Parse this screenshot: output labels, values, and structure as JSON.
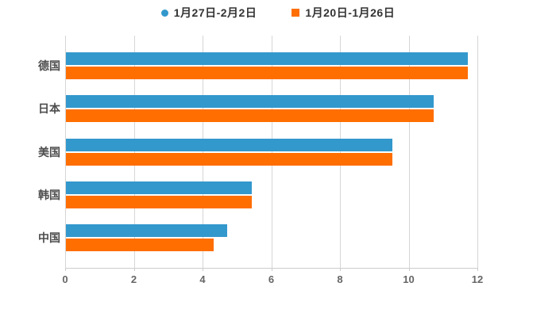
{
  "legend": {
    "items": [
      {
        "label": "1月27日-2月2日",
        "marker": "circle",
        "color": "#3398cc"
      },
      {
        "label": "1月20日-1月26日",
        "marker": "square",
        "color": "#ff6e00"
      }
    ]
  },
  "chart_data": {
    "type": "bar",
    "orientation": "horizontal",
    "title": "",
    "categories": [
      "德国",
      "日本",
      "美国",
      "韩国",
      "中国"
    ],
    "series": [
      {
        "name": "1月27日-2月2日",
        "color": "#3398cc",
        "values": [
          11.7,
          10.7,
          9.5,
          5.4,
          4.7
        ]
      },
      {
        "name": "1月20日-1月26日",
        "color": "#ff6e00",
        "values": [
          11.7,
          10.7,
          9.5,
          5.4,
          4.3
        ]
      }
    ],
    "xlim": [
      0,
      12
    ],
    "xticks": [
      0,
      2,
      4,
      6,
      8,
      10,
      12
    ],
    "grid": true,
    "legend_position": "top",
    "xlabel": "",
    "ylabel": "",
    "colors": {
      "grid": "#d6d6d6",
      "axis": "#cccccc",
      "tick_label": "#666666",
      "category_label": "#4d4d4d",
      "legend_label": "#333333",
      "background": "#ffffff"
    }
  }
}
